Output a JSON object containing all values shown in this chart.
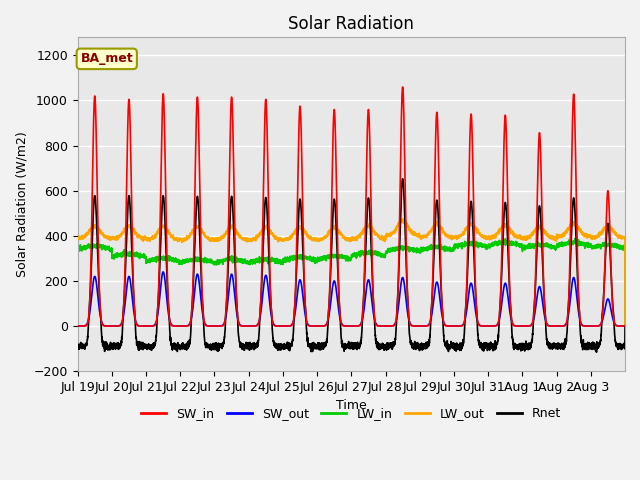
{
  "title": "Solar Radiation",
  "ylabel": "Solar Radiation (W/m2)",
  "xlabel": "Time",
  "ylim": [
    -200,
    1280
  ],
  "fig_bg_color": "#f2f2f2",
  "plot_bg_color": "#e8e8e8",
  "legend_label": "BA_met",
  "x_tick_labels": [
    "Jul 19",
    "Jul 20",
    "Jul 21",
    "Jul 22",
    "Jul 23",
    "Jul 24",
    "Jul 25",
    "Jul 26",
    "Jul 27",
    "Jul 28",
    "Jul 29",
    "Jul 30",
    "Jul 31",
    "Aug 1",
    "Aug 2",
    "Aug 3"
  ],
  "series": {
    "SW_in": {
      "color": "#ff0000",
      "lw": 1.2
    },
    "SW_out": {
      "color": "#0000ff",
      "lw": 1.2
    },
    "LW_in": {
      "color": "#00cc00",
      "lw": 1.2
    },
    "LW_out": {
      "color": "#ffa500",
      "lw": 1.2
    },
    "Rnet": {
      "color": "#000000",
      "lw": 1.2
    }
  },
  "n_days": 16,
  "pts_per_day": 288,
  "SW_in_peaks": [
    1020,
    1005,
    1030,
    1015,
    1015,
    1005,
    975,
    960,
    960,
    1060,
    948,
    940,
    935,
    857,
    1028,
    600
  ],
  "SW_out_peaks": [
    220,
    220,
    240,
    230,
    230,
    225,
    205,
    200,
    205,
    215,
    195,
    190,
    190,
    175,
    215,
    120
  ],
  "LW_in_base": [
    340,
    305,
    285,
    280,
    280,
    280,
    290,
    295,
    310,
    330,
    335,
    350,
    355,
    345,
    355,
    345
  ],
  "LW_in_noise": 5,
  "LW_out_base": [
    390,
    388,
    383,
    382,
    382,
    382,
    383,
    383,
    388,
    403,
    393,
    393,
    393,
    388,
    398,
    392
  ],
  "LW_out_peak_add": [
    55,
    55,
    58,
    58,
    58,
    55,
    55,
    55,
    55,
    65,
    58,
    58,
    55,
    52,
    58,
    50
  ],
  "Rnet_night": -90,
  "Rnet_peaks": [
    578,
    578,
    578,
    575,
    575,
    570,
    563,
    563,
    568,
    653,
    558,
    553,
    548,
    533,
    568,
    455
  ]
}
